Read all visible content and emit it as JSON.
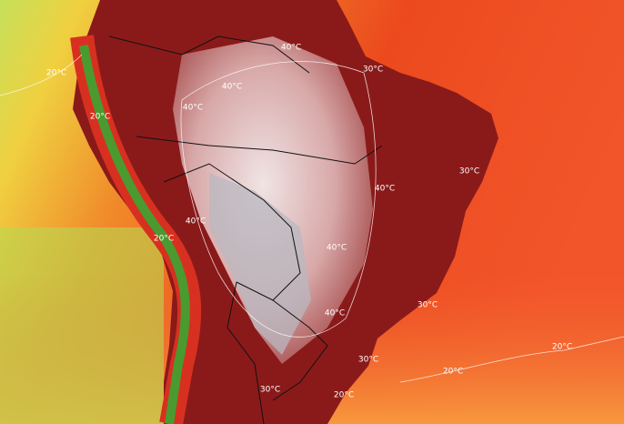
{
  "contour_labels": [
    "20°C",
    "40°C",
    "30°C",
    "40°C",
    "40°C",
    "20°C",
    "30°C",
    "40°C",
    "40°C",
    "20°C",
    "40°C",
    "30°C",
    "40°C",
    "30°C",
    "20°C",
    "20°C",
    "30°C",
    "20°C"
  ]
}
